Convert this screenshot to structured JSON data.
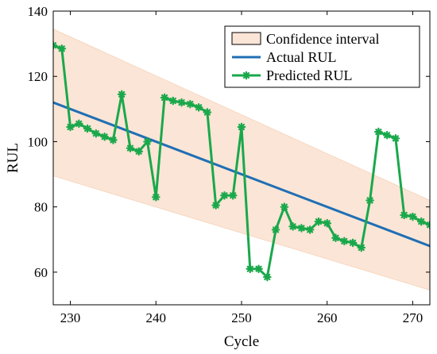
{
  "chart_data": {
    "type": "line",
    "xlabel": "Cycle",
    "ylabel": "RUL",
    "xlim": [
      228,
      272
    ],
    "ylim": [
      50,
      140
    ],
    "x_ticks": [
      230,
      240,
      250,
      260,
      270
    ],
    "y_ticks": [
      60,
      80,
      100,
      120,
      140
    ],
    "grid": false,
    "legend_position": "top-right",
    "confidence_interval": {
      "name": "Confidence interval",
      "color": "#fbe5d6",
      "x": [
        228,
        272
      ],
      "upper": [
        134.5,
        82.0
      ],
      "lower": [
        89.5,
        54.5
      ]
    },
    "series": [
      {
        "name": "Actual RUL",
        "color": "#1f6fb4",
        "x": [
          228,
          272
        ],
        "y": [
          112,
          68
        ]
      },
      {
        "name": "Predicted RUL",
        "color": "#1aa84b",
        "marker": "asterisk",
        "x": [
          228,
          229,
          230,
          231,
          232,
          233,
          234,
          235,
          236,
          237,
          238,
          239,
          240,
          241,
          242,
          243,
          244,
          245,
          246,
          247,
          248,
          249,
          250,
          251,
          252,
          253,
          254,
          255,
          256,
          257,
          258,
          259,
          260,
          261,
          262,
          263,
          264,
          265,
          266,
          267,
          268,
          269,
          270,
          271,
          272
        ],
        "y": [
          129.5,
          128.5,
          104.5,
          105.5,
          104,
          102.5,
          101.5,
          100.5,
          114.5,
          98,
          97,
          100,
          83,
          113.5,
          112.5,
          112,
          111.5,
          110.5,
          109,
          80.5,
          83.5,
          83.5,
          104.5,
          61,
          61,
          58.5,
          73,
          80,
          74,
          73.5,
          73,
          75.5,
          75,
          70.5,
          69.5,
          69,
          67.5,
          82,
          103,
          102,
          101,
          77.5,
          77,
          75.5,
          74.5
        ]
      }
    ]
  }
}
